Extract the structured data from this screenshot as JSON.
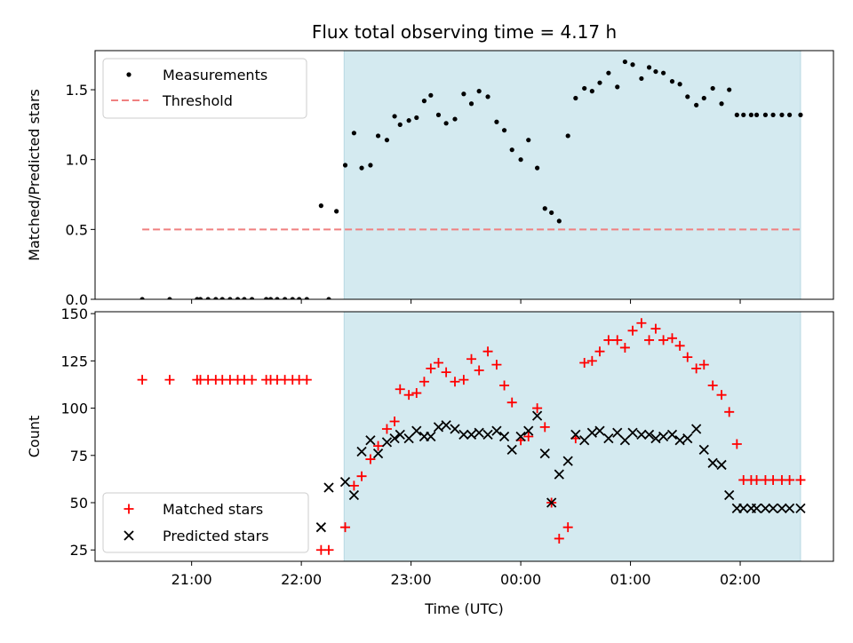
{
  "chart_data": [
    {
      "type": "scatter",
      "title": "Flux total observing time = 4.17 h",
      "ylabel": "Matched/Predicted stars",
      "xlabel": "",
      "ylim": [
        0,
        1.78
      ],
      "yticks": [
        "0.0",
        "0.5",
        "1.0",
        "1.5"
      ],
      "x_axis": "time (UTC), hours since 00:00 on the first night; negative = before midnight",
      "xlim": [
        -3.88,
        2.85
      ],
      "highlight_span": [
        -1.61,
        2.55
      ],
      "highlight_color": "#d4eaf0",
      "legend_position": "upper left",
      "series": [
        {
          "name": "Measurements",
          "marker": "dot",
          "color": "#000000",
          "x": [
            -3.45,
            -3.2,
            -2.95,
            -2.92,
            -2.85,
            -2.78,
            -2.72,
            -2.65,
            -2.58,
            -2.52,
            -2.45,
            -2.32,
            -2.28,
            -2.22,
            -2.15,
            -2.08,
            -2.02,
            -1.95,
            -1.82,
            -1.75,
            -1.68,
            -1.6,
            -1.52,
            -1.45,
            -1.37,
            -1.3,
            -1.22,
            -1.15,
            -1.1,
            -1.02,
            -0.95,
            -0.88,
            -0.82,
            -0.75,
            -0.68,
            -0.6,
            -0.52,
            -0.45,
            -0.38,
            -0.3,
            -0.22,
            -0.15,
            -0.08,
            0.0,
            0.07,
            0.15,
            0.22,
            0.28,
            0.35,
            0.43,
            0.5,
            0.58,
            0.65,
            0.72,
            0.8,
            0.88,
            0.95,
            1.02,
            1.1,
            1.17,
            1.23,
            1.3,
            1.38,
            1.45,
            1.52,
            1.6,
            1.67,
            1.75,
            1.83,
            1.9,
            1.97,
            2.03,
            2.1,
            2.15,
            2.23,
            2.3,
            2.38,
            2.45,
            2.55
          ],
          "y": [
            0,
            0,
            0,
            0,
            0,
            0,
            0,
            0,
            0,
            0,
            0,
            0,
            0,
            0,
            0,
            0,
            0,
            0,
            0.67,
            0,
            0.63,
            0.96,
            1.19,
            0.94,
            0.96,
            1.17,
            1.14,
            1.31,
            1.25,
            1.28,
            1.3,
            1.42,
            1.46,
            1.32,
            1.26,
            1.29,
            1.47,
            1.4,
            1.49,
            1.45,
            1.27,
            1.21,
            1.07,
            1.0,
            1.14,
            0.94,
            0.65,
            0.62,
            0.56,
            1.17,
            1.44,
            1.51,
            1.49,
            1.55,
            1.62,
            1.52,
            1.7,
            1.68,
            1.58,
            1.66,
            1.63,
            1.62,
            1.56,
            1.54,
            1.45,
            1.39,
            1.44,
            1.51,
            1.4,
            1.5,
            1.32,
            1.32,
            1.32,
            1.32,
            1.32,
            1.32,
            1.32,
            1.32,
            1.32
          ]
        },
        {
          "name": "Threshold",
          "marker": "dashed-line",
          "color": "#f08080",
          "x": [
            -3.45,
            2.55
          ],
          "y": [
            0.5,
            0.5
          ]
        }
      ]
    },
    {
      "type": "scatter",
      "title": "",
      "ylabel": "Count",
      "xlabel": "Time (UTC)",
      "ylim": [
        19,
        151
      ],
      "yticks": [
        "25",
        "50",
        "75",
        "100",
        "125",
        "150"
      ],
      "x_axis": "time (UTC), hours since 00:00 on the first night; negative = before midnight",
      "xlim": [
        -3.88,
        2.85
      ],
      "xticks": [
        {
          "x": -3.0,
          "label": "21:00"
        },
        {
          "x": -2.0,
          "label": "22:00"
        },
        {
          "x": -1.0,
          "label": "23:00"
        },
        {
          "x": 0.0,
          "label": "00:00"
        },
        {
          "x": 1.0,
          "label": "01:00"
        },
        {
          "x": 2.0,
          "label": "02:00"
        }
      ],
      "highlight_span": [
        -1.61,
        2.55
      ],
      "highlight_color": "#d4eaf0",
      "legend_position": "lower left",
      "series": [
        {
          "name": "Matched stars",
          "marker": "plus",
          "color": "#ff0000",
          "x": [
            -3.45,
            -3.2,
            -2.95,
            -2.92,
            -2.85,
            -2.78,
            -2.72,
            -2.65,
            -2.58,
            -2.52,
            -2.45,
            -2.32,
            -2.28,
            -2.22,
            -2.15,
            -2.08,
            -2.02,
            -1.95,
            -1.82,
            -1.75,
            -1.6,
            -1.52,
            -1.45,
            -1.37,
            -1.3,
            -1.22,
            -1.15,
            -1.1,
            -1.02,
            -0.95,
            -0.88,
            -0.82,
            -0.75,
            -0.68,
            -0.6,
            -0.52,
            -0.45,
            -0.38,
            -0.3,
            -0.22,
            -0.15,
            -0.08,
            0.0,
            0.07,
            0.15,
            0.22,
            0.28,
            0.35,
            0.43,
            0.5,
            0.58,
            0.65,
            0.72,
            0.8,
            0.88,
            0.95,
            1.02,
            1.1,
            1.17,
            1.23,
            1.3,
            1.38,
            1.45,
            1.52,
            1.6,
            1.67,
            1.75,
            1.83,
            1.9,
            1.97,
            2.03,
            2.1,
            2.15,
            2.23,
            2.3,
            2.38,
            2.45,
            2.55
          ],
          "y": [
            115,
            115,
            115,
            115,
            115,
            115,
            115,
            115,
            115,
            115,
            115,
            115,
            115,
            115,
            115,
            115,
            115,
            115,
            25,
            25,
            37,
            59,
            64,
            73,
            80,
            89,
            93,
            110,
            107,
            108,
            114,
            121,
            124,
            119,
            114,
            115,
            126,
            120,
            130,
            123,
            112,
            103,
            83,
            85,
            100,
            90,
            50,
            31,
            37,
            84,
            124,
            125,
            130,
            136,
            136,
            132,
            141,
            145,
            136,
            142,
            136,
            137,
            133,
            127,
            121,
            123,
            112,
            107,
            98,
            81,
            62,
            62,
            62,
            62,
            62,
            62,
            62,
            62
          ]
        },
        {
          "name": "Predicted stars",
          "marker": "x",
          "color": "#000000",
          "x": [
            -1.82,
            -1.75,
            -1.6,
            -1.52,
            -1.45,
            -1.37,
            -1.3,
            -1.22,
            -1.15,
            -1.1,
            -1.02,
            -0.95,
            -0.88,
            -0.82,
            -0.75,
            -0.68,
            -0.6,
            -0.52,
            -0.45,
            -0.38,
            -0.3,
            -0.22,
            -0.15,
            -0.08,
            0.0,
            0.07,
            0.15,
            0.22,
            0.28,
            0.35,
            0.43,
            0.5,
            0.58,
            0.65,
            0.72,
            0.8,
            0.88,
            0.95,
            1.02,
            1.1,
            1.17,
            1.23,
            1.3,
            1.38,
            1.45,
            1.52,
            1.6,
            1.67,
            1.75,
            1.83,
            1.9,
            1.97,
            2.03,
            2.1,
            2.15,
            2.23,
            2.3,
            2.38,
            2.45,
            2.55
          ],
          "y": [
            37,
            58,
            61,
            54,
            77,
            83,
            76,
            82,
            84,
            86,
            84,
            88,
            85,
            85,
            90,
            91,
            89,
            86,
            86,
            87,
            86,
            88,
            85,
            78,
            85,
            88,
            96,
            76,
            50,
            65,
            72,
            86,
            83,
            87,
            88,
            84,
            87,
            83,
            87,
            86,
            86,
            84,
            85,
            86,
            83,
            84,
            89,
            78,
            71,
            70,
            54,
            47,
            47,
            47,
            47,
            47,
            47,
            47,
            47,
            47
          ]
        }
      ]
    }
  ]
}
